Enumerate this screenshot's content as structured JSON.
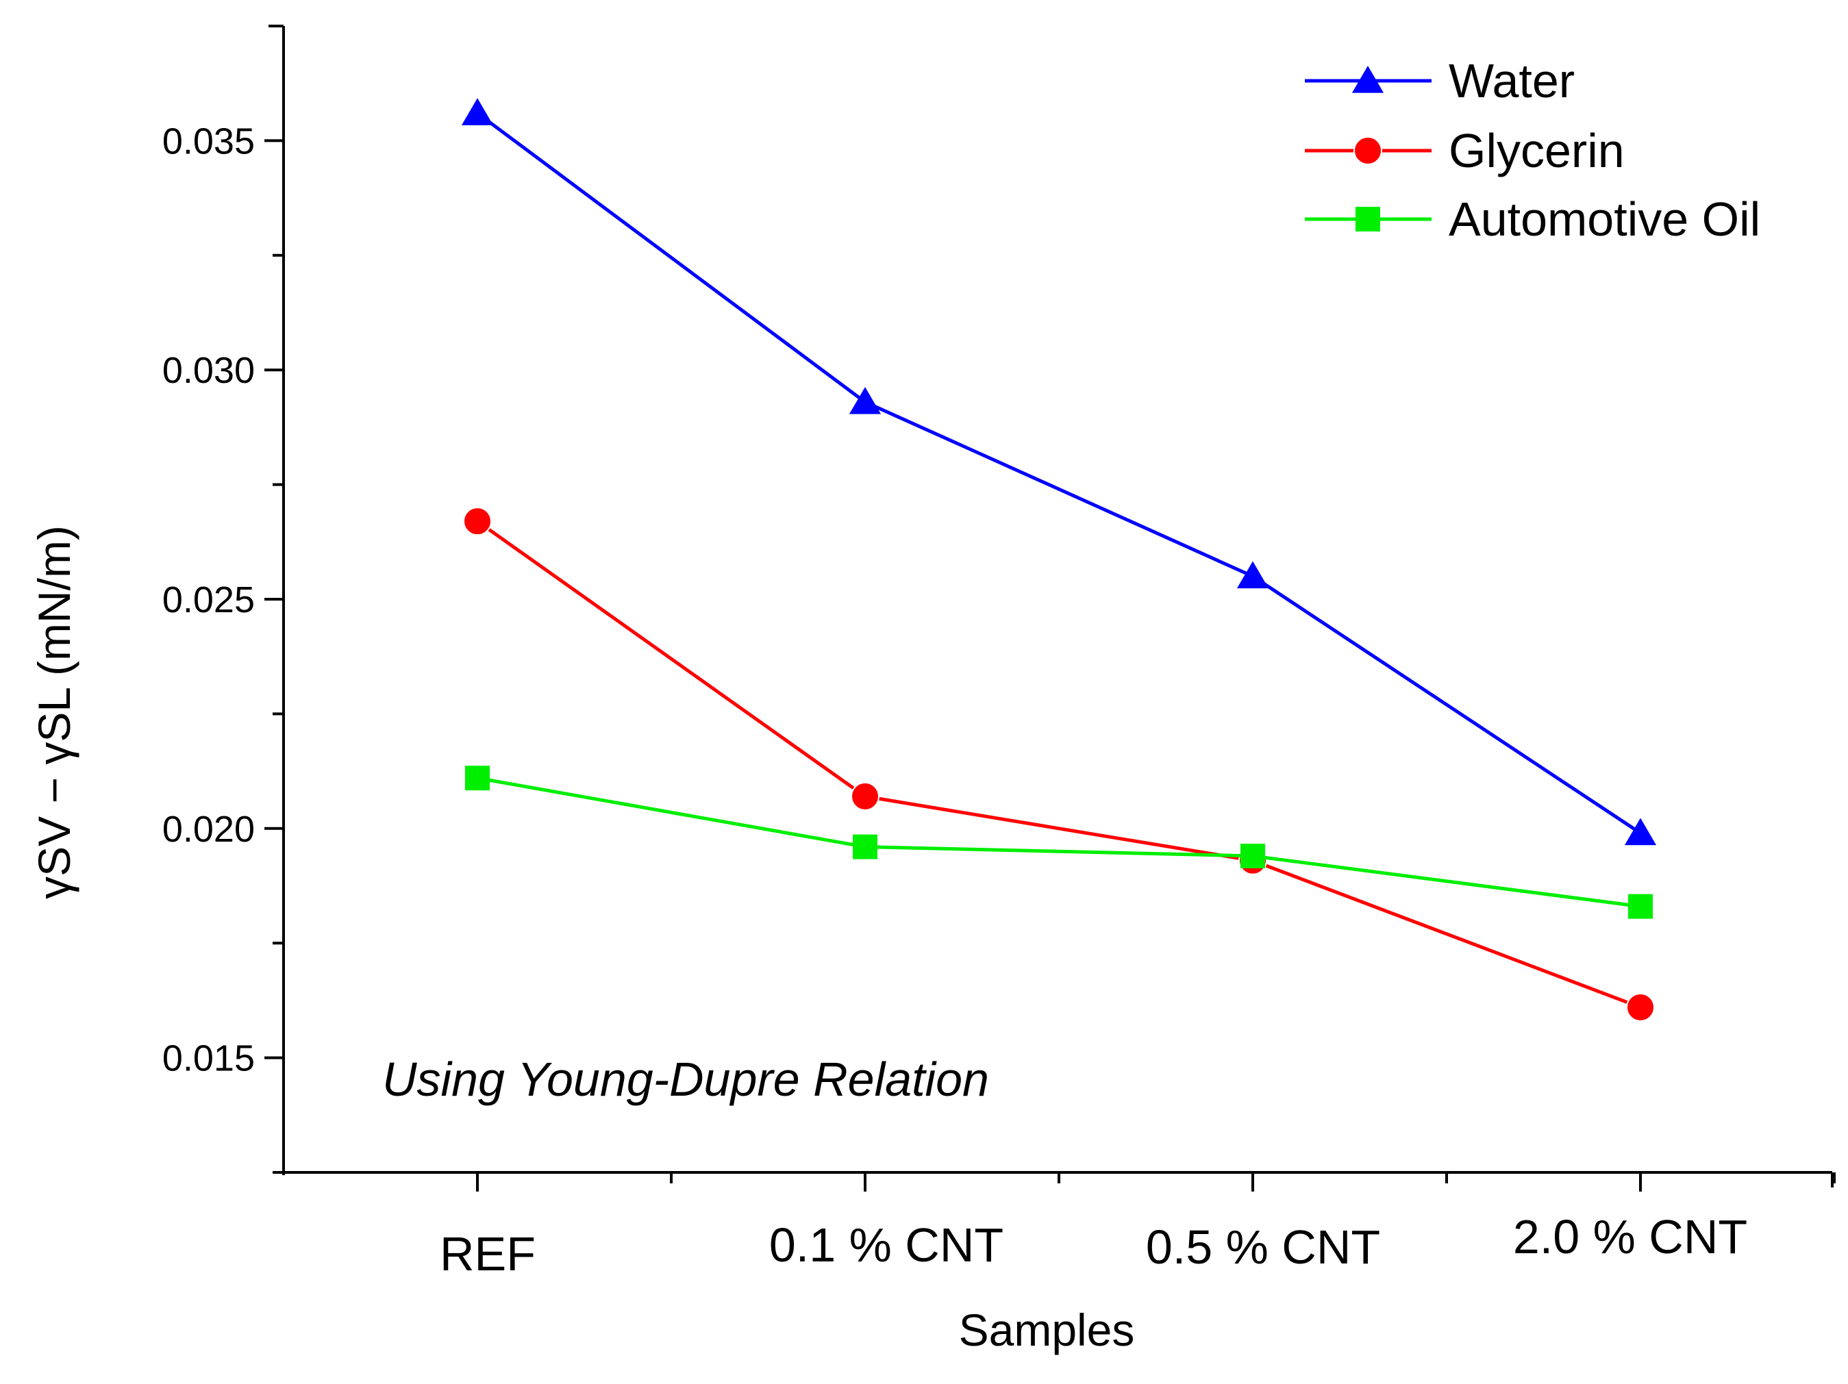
{
  "chart_data": {
    "type": "line",
    "title": "",
    "xlabel": "Samples",
    "ylabel": "γSV − γSL (mN/m)",
    "categories": [
      "REF",
      "0.1 % CNT",
      "0.5 % CNT",
      "2.0 % CNT"
    ],
    "ylim": [
      0.0125,
      0.0375
    ],
    "yticks": [
      0.015,
      0.02,
      0.025,
      0.03,
      0.035
    ],
    "ytick_labels": [
      "0.015",
      "0.020",
      "0.025",
      "0.030",
      "0.035"
    ],
    "grid": false,
    "legend_position": "top-right",
    "annotation": "Using Young-Dupre Relation",
    "series": [
      {
        "name": "Water",
        "color": "#0000ff",
        "marker": "triangle",
        "values": [
          0.0356,
          0.0293,
          0.0255,
          0.0199
        ]
      },
      {
        "name": "Glycerin",
        "color": "#ff0000",
        "marker": "circle",
        "values": [
          0.0267,
          0.0207,
          0.0193,
          0.0161
        ]
      },
      {
        "name": "Automotive Oil",
        "color": "#00ee00",
        "marker": "square",
        "values": [
          0.0211,
          0.0196,
          0.0194,
          0.0183
        ]
      }
    ]
  }
}
